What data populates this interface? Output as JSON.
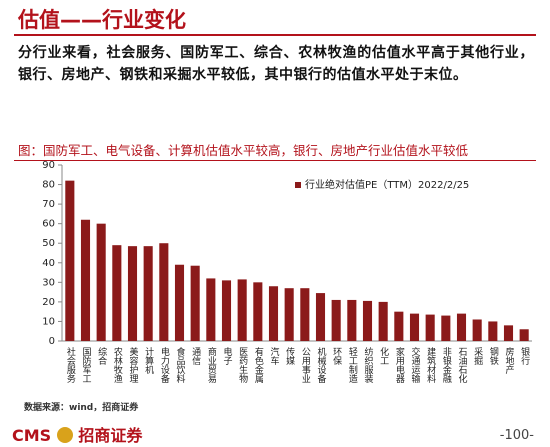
{
  "header": {
    "title": "估值——行业变化"
  },
  "intro": "分行业来看，社会服务、国防军工、综合、农林牧渔的估值水平高于其他行业，银行、房地产、钢铁和采掘水平较低，其中银行的估值水平处于末位。",
  "caption": "图：国防军工、电气设备、计算机估值水平较高，银行、房地产行业估值水平较低",
  "source": "数据来源：wind，招商证券",
  "logo": {
    "mark": "CMS",
    "name": "招商证券"
  },
  "page_number": "-100-",
  "chart_data": {
    "type": "bar",
    "categories": [
      "社会服务",
      "国防军工",
      "综合",
      "农林牧渔",
      "美容护理",
      "计算机",
      "电力设备",
      "食品饮料",
      "通信",
      "商业贸易",
      "电子",
      "医药生物",
      "有色金属",
      "汽车",
      "传媒",
      "公用事业",
      "机械设备",
      "环保",
      "轻工制造",
      "纺织服装",
      "化工",
      "家用电器",
      "交通运输",
      "建筑材料",
      "非银金融",
      "石油石化",
      "采掘",
      "钢铁",
      "房地产",
      "银行"
    ],
    "series": [
      {
        "name": "行业绝对估值PE（TTM）2022/2/25",
        "color": "#8b1a1a",
        "values": [
          82,
          62,
          60,
          49,
          48.5,
          48.5,
          50,
          39,
          38.5,
          32,
          31,
          31.5,
          30,
          28,
          27,
          27,
          24.5,
          21,
          21,
          20.5,
          20,
          15,
          14,
          13.5,
          13,
          14,
          11,
          10,
          8,
          6
        ]
      }
    ],
    "ylim": [
      0,
      90
    ],
    "yticks": [
      0,
      10,
      20,
      30,
      40,
      50,
      60,
      70,
      80,
      90
    ],
    "legend": "top-right"
  }
}
